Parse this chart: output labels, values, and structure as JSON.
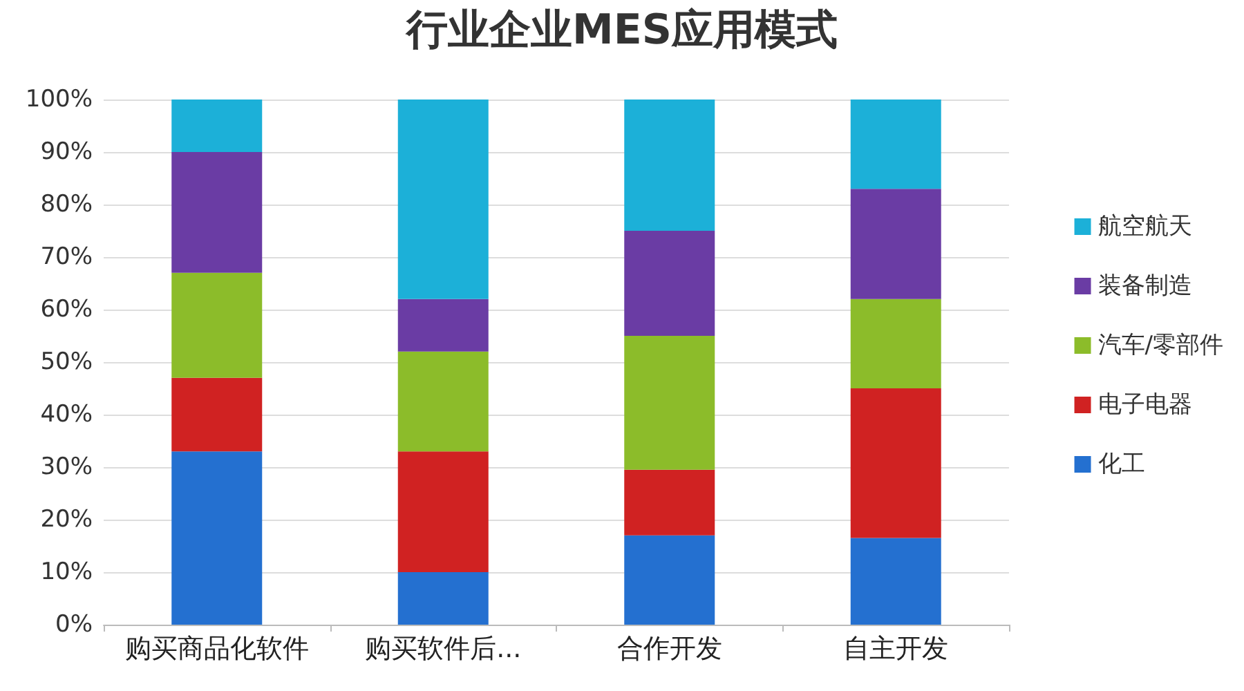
{
  "chart_data": {
    "type": "bar",
    "title": "行业企业MES应用模式",
    "stacked": true,
    "categories": [
      "购买商品化软件",
      "购买软件后...",
      "合作开发",
      "自主开发"
    ],
    "series": [
      {
        "name": "化工",
        "color": "#2470d0",
        "values": [
          33,
          10,
          17,
          16.5
        ]
      },
      {
        "name": "电子电器",
        "color": "#d02222",
        "values": [
          14,
          23,
          12.5,
          28.5
        ]
      },
      {
        "name": "汽车/零部件",
        "color": "#8cbc2a",
        "values": [
          20,
          19,
          25.5,
          17
        ]
      },
      {
        "name": "装备制造",
        "color": "#6a3ca4",
        "values": [
          23,
          10,
          20,
          21
        ]
      },
      {
        "name": "航空航天",
        "color": "#1cb0d8",
        "values": [
          10,
          38,
          25,
          17
        ]
      }
    ],
    "ylim": [
      0,
      100
    ],
    "yticks": [
      {
        "value": 0,
        "label": "0%"
      },
      {
        "value": 10,
        "label": "10%"
      },
      {
        "value": 20,
        "label": "20%"
      },
      {
        "value": 30,
        "label": "30%"
      },
      {
        "value": 40,
        "label": "40%"
      },
      {
        "value": 50,
        "label": "50%"
      },
      {
        "value": 60,
        "label": "60%"
      },
      {
        "value": 70,
        "label": "70%"
      },
      {
        "value": 80,
        "label": "80%"
      },
      {
        "value": 90,
        "label": "90%"
      },
      {
        "value": 100,
        "label": "100%"
      }
    ],
    "grid": "y",
    "legend": "right"
  }
}
